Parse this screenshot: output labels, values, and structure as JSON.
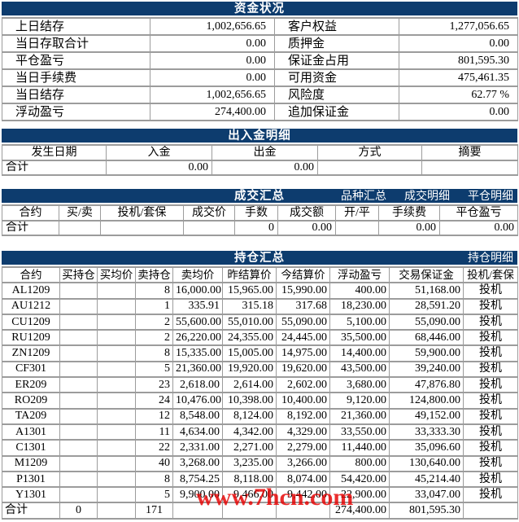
{
  "colors": {
    "title_bar": "#0d3c6e",
    "border": "#9c9c9c",
    "watermark": "#e60000"
  },
  "watermark": {
    "text": "www.7hcn.com"
  },
  "fund_status": {
    "title": "资金状况",
    "rows": [
      {
        "label1": "上日结存",
        "value1": "1,002,656.65",
        "label2": "客户权益",
        "value2": "1,277,056.65"
      },
      {
        "label1": "当日存取合计",
        "value1": "0.00",
        "label2": "质押金",
        "value2": "0.00"
      },
      {
        "label1": "平仓盈亏",
        "value1": "0.00",
        "label2": "保证金占用",
        "value2": "801,595.30"
      },
      {
        "label1": "当日手续费",
        "value1": "0.00",
        "label2": "可用资金",
        "value2": "475,461.35"
      },
      {
        "label1": "当日结存",
        "value1": "1,002,656.65",
        "label2": "风险度",
        "value2": "62.77 %"
      },
      {
        "label1": "浮动盈亏",
        "value1": "274,400.00",
        "label2": "追加保证金",
        "value2": "0.00"
      }
    ]
  },
  "cash_flow": {
    "title": "出入金明细",
    "headers": [
      "发生日期",
      "入金",
      "出金",
      "方式",
      "摘要"
    ],
    "total_row": {
      "label": "合计",
      "deposit": "0.00",
      "withdrawal": "0.00",
      "method": "",
      "note": ""
    }
  },
  "trade_summary": {
    "title": "成交汇总",
    "links": [
      "品种汇总",
      "成交明细",
      "平仓明细"
    ],
    "headers": [
      "合约",
      "买/卖",
      "投机/套保",
      "成交价",
      "手数",
      "成交额",
      "开/平",
      "手续费",
      "平仓盈亏"
    ],
    "total_row": {
      "label": "合计",
      "buy_sell": "",
      "spec_hedge": "",
      "price": "",
      "lots": "0",
      "amount": "0.00",
      "open_close": "",
      "fee": "0.00",
      "close_pl": "0.00"
    }
  },
  "position_summary": {
    "title": "持仓汇总",
    "links": [
      "持仓明细"
    ],
    "headers": [
      "合约",
      "买持仓",
      "买均价",
      "卖持仓",
      "卖均价",
      "昨结算价",
      "今结算价",
      "浮动盈亏",
      "交易保证金",
      "投机/套保"
    ],
    "rows": [
      [
        "AL1209",
        "",
        "",
        "8",
        "16,000.00",
        "15,965.00",
        "15,990.00",
        "400.00",
        "51,168.00",
        "投机"
      ],
      [
        "AU1212",
        "",
        "",
        "1",
        "335.91",
        "315.18",
        "317.68",
        "18,230.00",
        "28,591.20",
        "投机"
      ],
      [
        "CU1209",
        "",
        "",
        "2",
        "55,600.00",
        "55,010.00",
        "55,090.00",
        "5,100.00",
        "55,090.00",
        "投机"
      ],
      [
        "RU1209",
        "",
        "",
        "2",
        "26,220.00",
        "24,355.00",
        "24,445.00",
        "35,500.00",
        "68,446.00",
        "投机"
      ],
      [
        "ZN1209",
        "",
        "",
        "8",
        "15,335.00",
        "15,005.00",
        "14,975.00",
        "14,400.00",
        "59,900.00",
        "投机"
      ],
      [
        "CF301",
        "",
        "",
        "5",
        "21,360.00",
        "19,920.00",
        "19,620.00",
        "43,500.00",
        "39,240.00",
        "投机"
      ],
      [
        "ER209",
        "",
        "",
        "23",
        "2,618.00",
        "2,614.00",
        "2,602.00",
        "3,680.00",
        "47,876.80",
        "投机"
      ],
      [
        "RO209",
        "",
        "",
        "24",
        "10,476.00",
        "10,398.00",
        "10,400.00",
        "9,120.00",
        "124,800.00",
        "投机"
      ],
      [
        "TA209",
        "",
        "",
        "12",
        "8,548.00",
        "8,124.00",
        "8,192.00",
        "21,360.00",
        "49,152.00",
        "投机"
      ],
      [
        "A1301",
        "",
        "",
        "11",
        "4,634.00",
        "4,342.00",
        "4,329.00",
        "33,550.00",
        "33,333.30",
        "投机"
      ],
      [
        "C1301",
        "",
        "",
        "22",
        "2,331.00",
        "2,271.00",
        "2,279.00",
        "11,440.00",
        "35,096.60",
        "投机"
      ],
      [
        "M1209",
        "",
        "",
        "40",
        "3,268.00",
        "3,235.00",
        "3,266.00",
        "800.00",
        "130,640.00",
        "投机"
      ],
      [
        "P1301",
        "",
        "",
        "8",
        "8,754.25",
        "8,118.00",
        "8,074.00",
        "54,420.00",
        "45,214.40",
        "投机"
      ],
      [
        "Y1301",
        "",
        "",
        "5",
        "9,900.00",
        "9,466.00",
        "9,442.00",
        "22,900.00",
        "33,047.00",
        "投机"
      ]
    ],
    "total": [
      "合计",
      "0",
      "",
      "171",
      "",
      "",
      "",
      "274,400.00",
      "801,595.30",
      ""
    ]
  }
}
